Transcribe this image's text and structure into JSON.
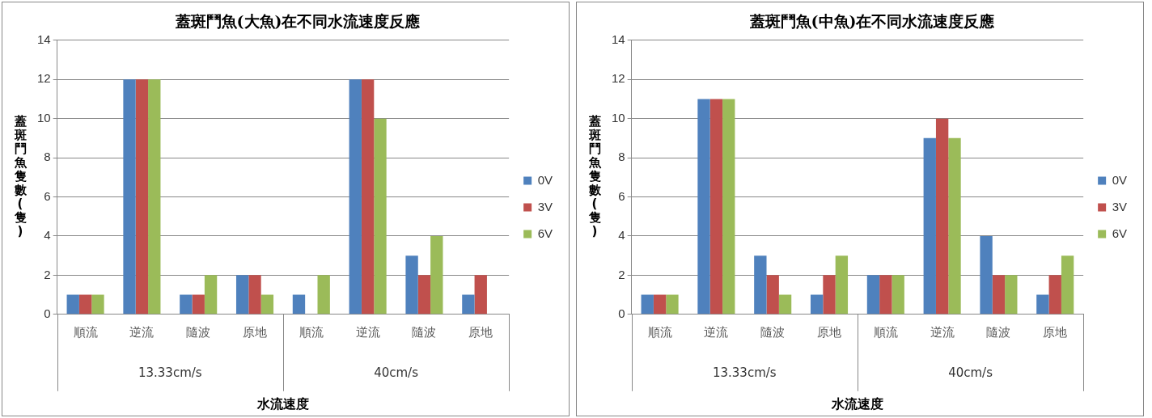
{
  "chart_data": [
    {
      "type": "bar",
      "title": "蓋斑鬥魚(大魚)在不同水流速度反應",
      "xlabel": "水流速度",
      "ylabel": "蓋斑鬥魚隻數(隻)",
      "categories": [
        "順流",
        "逆流",
        "隨波",
        "原地",
        "順流",
        "逆流",
        "隨波",
        "原地"
      ],
      "annotations": [
        "13.33cm/s",
        "40cm/s"
      ],
      "series": [
        {
          "name": "0V",
          "color": "#4f81bd",
          "values": [
            1,
            12,
            1,
            2,
            1,
            12,
            3,
            1
          ]
        },
        {
          "name": "3V",
          "color": "#c0504d",
          "values": [
            1,
            12,
            1,
            2,
            0,
            12,
            2,
            2
          ]
        },
        {
          "name": "6V",
          "color": "#9bbb59",
          "values": [
            1,
            12,
            2,
            1,
            2,
            10,
            4,
            0
          ]
        }
      ],
      "ylim": [
        0,
        14
      ],
      "yticks": [
        0,
        2,
        4,
        6,
        8,
        10,
        12,
        14
      ],
      "grid": "y",
      "legend": "right"
    },
    {
      "type": "bar",
      "title": "蓋斑鬥魚(中魚)在不同水流速度反應",
      "xlabel": "水流速度",
      "ylabel": "蓋斑鬥魚隻數(隻)",
      "categories": [
        "順流",
        "逆流",
        "隨波",
        "原地",
        "順流",
        "逆流",
        "隨波",
        "原地"
      ],
      "annotations": [
        "13.33cm/s",
        "40cm/s"
      ],
      "series": [
        {
          "name": "0V",
          "color": "#4f81bd",
          "values": [
            1,
            11,
            3,
            1,
            2,
            9,
            4,
            1
          ]
        },
        {
          "name": "3V",
          "color": "#c0504d",
          "values": [
            1,
            11,
            2,
            2,
            2,
            10,
            2,
            2
          ]
        },
        {
          "name": "6V",
          "color": "#9bbb59",
          "values": [
            1,
            11,
            1,
            3,
            2,
            9,
            2,
            3
          ]
        }
      ],
      "ylim": [
        0,
        14
      ],
      "yticks": [
        0,
        2,
        4,
        6,
        8,
        10,
        12,
        14
      ],
      "grid": "y",
      "legend": "right"
    }
  ]
}
